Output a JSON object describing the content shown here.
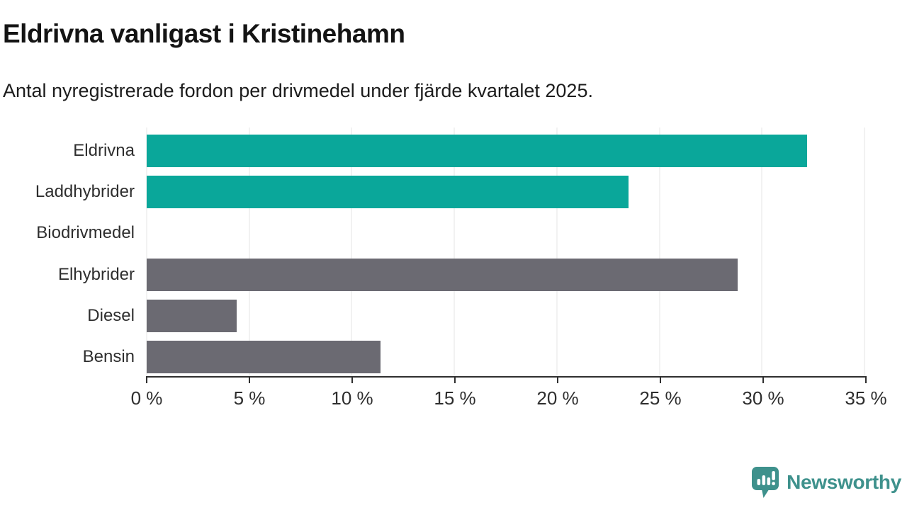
{
  "chart_data": {
    "type": "bar",
    "orientation": "horizontal",
    "title": "Eldrivna vanligast i Kristinehamn",
    "subtitle": "Antal nyregistrerade fordon per drivmedel under fjärde kvartalet 2025.",
    "categories": [
      "Eldrivna",
      "Laddhybrider",
      "Biodrivmedel",
      "Elhybrider",
      "Diesel",
      "Bensin"
    ],
    "values": [
      32.2,
      23.5,
      0,
      28.8,
      4.4,
      11.4
    ],
    "bar_colors": [
      "#0aa79a",
      "#0aa79a",
      "#0aa79a",
      "#6b6a72",
      "#6b6a72",
      "#6b6a72"
    ],
    "xlabel": "",
    "ylabel": "",
    "xlim": [
      0,
      35
    ],
    "x_ticks": [
      0,
      5,
      10,
      15,
      20,
      25,
      30,
      35
    ],
    "x_tick_suffix": " %",
    "grid": true,
    "legend": false
  },
  "colors": {
    "highlight_teal": "#0aa79a",
    "neutral_gray": "#6b6a72",
    "axis": "#2f2f2f",
    "grid_line": "#e4e4e4",
    "brand_teal": "#3e918c"
  },
  "footer": {
    "brand": "Newsworthy",
    "logo_icon": "newsworthy-speech-bubble-bar-chart-icon"
  }
}
